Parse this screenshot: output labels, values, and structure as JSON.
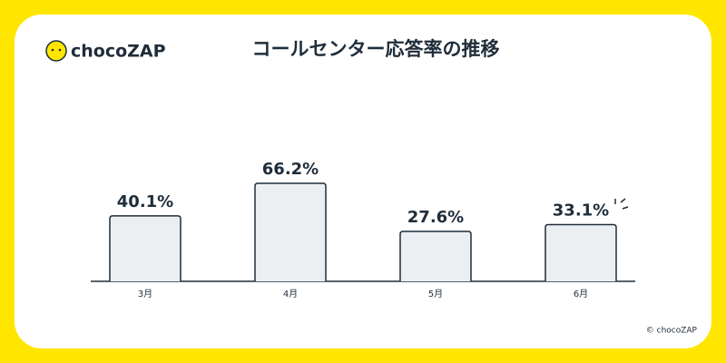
{
  "brand": "chocoZAP",
  "copyright": "© chocoZAP",
  "chart_data": {
    "type": "bar",
    "title": "コールセンター応答率の推移",
    "categories": [
      "3月",
      "4月",
      "5月",
      "6月"
    ],
    "values": [
      40.1,
      66.2,
      27.6,
      33.1
    ],
    "value_labels": [
      "40.1%",
      "66.2%",
      "27.6%",
      "33.1%"
    ],
    "color": "#eceff2"
  }
}
